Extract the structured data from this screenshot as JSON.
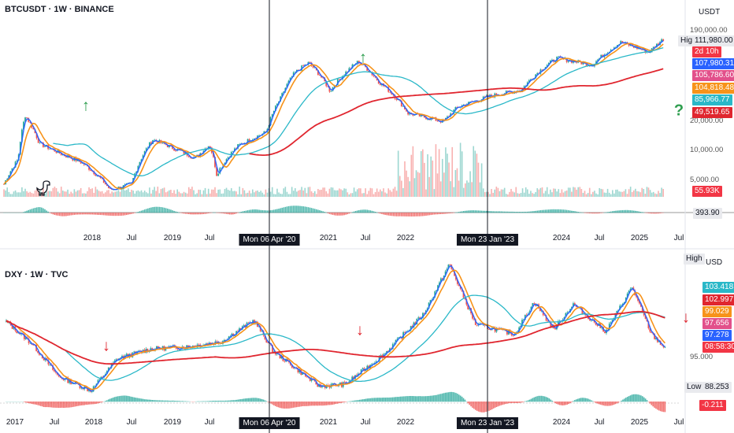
{
  "colors": {
    "up": "#26a69a",
    "down": "#ef5350",
    "ma_orange": "#f7931a",
    "ma_cyan": "#2ab8c8",
    "ma_red": "#e0262f",
    "ma_blue": "#2962ff",
    "arrow_green": "#2e9e4f",
    "arrow_red": "#e0262f"
  },
  "panes": {
    "btc": {
      "title": "BTCUSDT · 1W · BINANCE",
      "unit": "USDT",
      "high_label": "High",
      "y_ticks": [
        "190,000.00",
        "111,980.00",
        "20,000.00",
        "10,000.00",
        "5,000.00"
      ],
      "price_badges": [
        {
          "text": "111,980.00",
          "color": "#e9eaee"
        },
        {
          "text": "2d 10h",
          "color": "#f23645"
        },
        {
          "text": "107,980.31",
          "color": "#2962ff"
        },
        {
          "text": "105,786.60",
          "color": "#e2508b"
        },
        {
          "text": "104,818.48",
          "color": "#f7931a"
        },
        {
          "text": "85,966.77",
          "color": "#2ab8c8"
        },
        {
          "text": "49,519.65",
          "color": "#e0262f"
        }
      ],
      "volume_badge": "55.93K",
      "macd_badge": "393.90",
      "x_ticks": [
        "2018",
        "Jul",
        "2019",
        "Jul",
        "2021",
        "Jul",
        "2022",
        "2024",
        "Jul",
        "2025",
        "Jul"
      ],
      "annotations": {
        "up_arrow": "↑",
        "question": "?"
      }
    },
    "dxy": {
      "title": "DXY · 1W · TVC",
      "unit": "USD",
      "high_label": "High",
      "low_label": "Low",
      "y_ticks": [
        "95.000"
      ],
      "price_badges": [
        {
          "text": "103.418",
          "color": "#2ab8c8"
        },
        {
          "text": "102.997",
          "color": "#e0262f"
        },
        {
          "text": "99.029",
          "color": "#f7931a"
        },
        {
          "text": "97.656",
          "color": "#e2508b"
        },
        {
          "text": "97.278",
          "color": "#2962ff"
        },
        {
          "text": "08:58:30",
          "color": "#f23645"
        }
      ],
      "low_badge": "88.253",
      "macd_badge": "-0.211",
      "x_ticks": [
        "2017",
        "Jul",
        "2018",
        "Jul",
        "2019",
        "Jul",
        "2021",
        "Jul",
        "2022",
        "2024",
        "Jul",
        "2025",
        "Jul"
      ],
      "annotations": {
        "down_arrow": "↓",
        "up_arrow": "↑"
      }
    }
  },
  "crosshairs": [
    "Mon 06 Apr '20",
    "Mon 23 Jan '23"
  ],
  "chart_data": [
    {
      "type": "candlestick",
      "title": "BTCUSDT · 1W · BINANCE",
      "y_unit": "USDT",
      "y_scale": "log",
      "ylim": [
        3000,
        190000
      ],
      "x_range": [
        "2017-08",
        "2025-07"
      ],
      "high": 111980.0,
      "last_close": 107980.31,
      "moving_averages": [
        105786.6,
        104818.48,
        85966.77,
        49519.65
      ],
      "volume_last": "55.93K",
      "macd_last": 393.9,
      "price_path": [
        {
          "date": "2017-09",
          "close": 4000
        },
        {
          "date": "2017-11",
          "close": 7000
        },
        {
          "date": "2017-12",
          "close": 19000
        },
        {
          "date": "2018-02",
          "close": 10000
        },
        {
          "date": "2018-05",
          "close": 8000
        },
        {
          "date": "2018-08",
          "close": 6500
        },
        {
          "date": "2018-12",
          "close": 3500
        },
        {
          "date": "2019-03",
          "close": 4000
        },
        {
          "date": "2019-06",
          "close": 11000
        },
        {
          "date": "2019-09",
          "close": 9000
        },
        {
          "date": "2019-12",
          "close": 7200
        },
        {
          "date": "2020-02",
          "close": 9800
        },
        {
          "date": "2020-03",
          "close": 5000
        },
        {
          "date": "2020-06",
          "close": 9500
        },
        {
          "date": "2020-10",
          "close": 13000
        },
        {
          "date": "2020-12",
          "close": 28000
        },
        {
          "date": "2021-02",
          "close": 50000
        },
        {
          "date": "2021-04",
          "close": 63000
        },
        {
          "date": "2021-07",
          "close": 33000
        },
        {
          "date": "2021-11",
          "close": 65000
        },
        {
          "date": "2022-02",
          "close": 40000
        },
        {
          "date": "2022-06",
          "close": 20000
        },
        {
          "date": "2022-11",
          "close": 16500
        },
        {
          "date": "2023-01",
          "close": 23000
        },
        {
          "date": "2023-06",
          "close": 30000
        },
        {
          "date": "2023-10",
          "close": 34000
        },
        {
          "date": "2024-03",
          "close": 70000
        },
        {
          "date": "2024-08",
          "close": 60000
        },
        {
          "date": "2024-12",
          "close": 100000
        },
        {
          "date": "2025-04",
          "close": 80000
        },
        {
          "date": "2025-06",
          "close": 107980
        }
      ]
    },
    {
      "type": "candlestick",
      "title": "DXY · 1W · TVC",
      "y_unit": "USD",
      "ylim": [
        88,
        115
      ],
      "x_range": [
        "2016-12",
        "2025-07"
      ],
      "low": 88.253,
      "last_close": 97.278,
      "moving_averages": [
        103.418,
        102.997,
        99.029,
        97.656
      ],
      "macd_last": -0.211,
      "price_path": [
        {
          "date": "2017-01",
          "close": 102.5
        },
        {
          "date": "2017-05",
          "close": 98
        },
        {
          "date": "2017-09",
          "close": 91.5
        },
        {
          "date": "2018-02",
          "close": 88.6
        },
        {
          "date": "2018-06",
          "close": 95
        },
        {
          "date": "2018-11",
          "close": 97
        },
        {
          "date": "2019-05",
          "close": 97.5
        },
        {
          "date": "2019-10",
          "close": 98.5
        },
        {
          "date": "2020-03",
          "close": 102.8
        },
        {
          "date": "2020-06",
          "close": 96.5
        },
        {
          "date": "2021-01",
          "close": 89.5
        },
        {
          "date": "2021-05",
          "close": 89.9
        },
        {
          "date": "2021-11",
          "close": 96
        },
        {
          "date": "2022-05",
          "close": 104
        },
        {
          "date": "2022-09",
          "close": 114.1
        },
        {
          "date": "2023-01",
          "close": 102
        },
        {
          "date": "2023-07",
          "close": 100
        },
        {
          "date": "2023-10",
          "close": 106.5
        },
        {
          "date": "2024-01",
          "close": 101
        },
        {
          "date": "2024-04",
          "close": 106
        },
        {
          "date": "2024-09",
          "close": 100.5
        },
        {
          "date": "2025-01",
          "close": 109.5
        },
        {
          "date": "2025-04",
          "close": 100
        },
        {
          "date": "2025-06",
          "close": 97.3
        }
      ]
    }
  ]
}
